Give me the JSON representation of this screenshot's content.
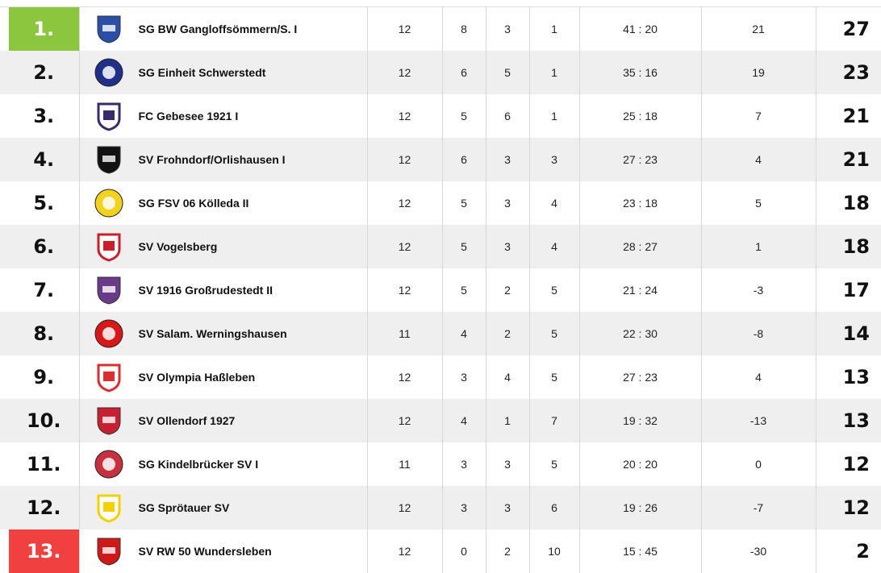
{
  "colors": {
    "promotion": "#8cc63f",
    "relegation": "#f04040",
    "alt_row": "#efefef"
  },
  "rows": [
    {
      "rank": "1.",
      "status": "up",
      "team": "SG BW Gangloffsömmern/S. I",
      "logo": "gangloffsoemmern-crest",
      "logo_color": "#2b4fa8",
      "games": "12",
      "w": "8",
      "d": "3",
      "l": "1",
      "goals": "41 : 20",
      "diff": "21",
      "pts": "27"
    },
    {
      "rank": "2.",
      "status": "",
      "team": "SG Einheit Schwerstedt",
      "logo": "schwerstedt-crest",
      "logo_color": "#1f2f8a",
      "games": "12",
      "w": "6",
      "d": "5",
      "l": "1",
      "goals": "35 : 16",
      "diff": "19",
      "pts": "23"
    },
    {
      "rank": "3.",
      "status": "",
      "team": "FC Gebesee 1921 I",
      "logo": "gebesee-crest",
      "logo_color": "#3a2a6a",
      "games": "12",
      "w": "5",
      "d": "6",
      "l": "1",
      "goals": "25 : 18",
      "diff": "7",
      "pts": "21"
    },
    {
      "rank": "4.",
      "status": "",
      "team": "SV Frohndorf/Orlishausen I",
      "logo": "frohndorf-crest",
      "logo_color": "#111111",
      "games": "12",
      "w": "6",
      "d": "3",
      "l": "3",
      "goals": "27 : 23",
      "diff": "4",
      "pts": "21"
    },
    {
      "rank": "5.",
      "status": "",
      "team": "SG FSV 06 Kölleda II",
      "logo": "koelleda-crest",
      "logo_color": "#f2d21c",
      "games": "12",
      "w": "5",
      "d": "3",
      "l": "4",
      "goals": "23 : 18",
      "diff": "5",
      "pts": "18"
    },
    {
      "rank": "6.",
      "status": "",
      "team": "SV Vogelsberg",
      "logo": "vogelsberg-crest",
      "logo_color": "#c8202a",
      "games": "12",
      "w": "5",
      "d": "3",
      "l": "4",
      "goals": "28 : 27",
      "diff": "1",
      "pts": "18"
    },
    {
      "rank": "7.",
      "status": "",
      "team": "SV 1916 Großrudestedt II",
      "logo": "grossrudestedt-crest",
      "logo_color": "#6a3a8a",
      "games": "12",
      "w": "5",
      "d": "2",
      "l": "5",
      "goals": "21 : 24",
      "diff": "-3",
      "pts": "17"
    },
    {
      "rank": "8.",
      "status": "",
      "team": "SV Salam. Werningshausen",
      "logo": "werningshausen-crest",
      "logo_color": "#d81818",
      "games": "11",
      "w": "4",
      "d": "2",
      "l": "5",
      "goals": "22 : 30",
      "diff": "-8",
      "pts": "14"
    },
    {
      "rank": "9.",
      "status": "",
      "team": "SV Olympia Haßleben",
      "logo": "hassleben-crest",
      "logo_color": "#d83030",
      "games": "12",
      "w": "3",
      "d": "4",
      "l": "5",
      "goals": "27 : 23",
      "diff": "4",
      "pts": "13"
    },
    {
      "rank": "10.",
      "status": "",
      "team": "SV Ollendorf 1927",
      "logo": "ollendorf-crest",
      "logo_color": "#c82030",
      "games": "12",
      "w": "4",
      "d": "1",
      "l": "7",
      "goals": "19 : 32",
      "diff": "-13",
      "pts": "13"
    },
    {
      "rank": "11.",
      "status": "",
      "team": "SG Kindelbrücker SV I",
      "logo": "kindelbrueck-crest",
      "logo_color": "#c83040",
      "games": "11",
      "w": "3",
      "d": "3",
      "l": "5",
      "goals": "20 : 20",
      "diff": "0",
      "pts": "12"
    },
    {
      "rank": "12.",
      "status": "",
      "team": "SG Sprötauer SV",
      "logo": "sproetau-crest",
      "logo_color": "#f5d000",
      "games": "12",
      "w": "3",
      "d": "3",
      "l": "6",
      "goals": "19 : 26",
      "diff": "-7",
      "pts": "12"
    },
    {
      "rank": "13.",
      "status": "down",
      "team": "SV RW 50 Wundersleben",
      "logo": "wundersleben-crest",
      "logo_color": "#d01818",
      "games": "12",
      "w": "0",
      "d": "2",
      "l": "10",
      "goals": "15 : 45",
      "diff": "-30",
      "pts": "2"
    }
  ]
}
